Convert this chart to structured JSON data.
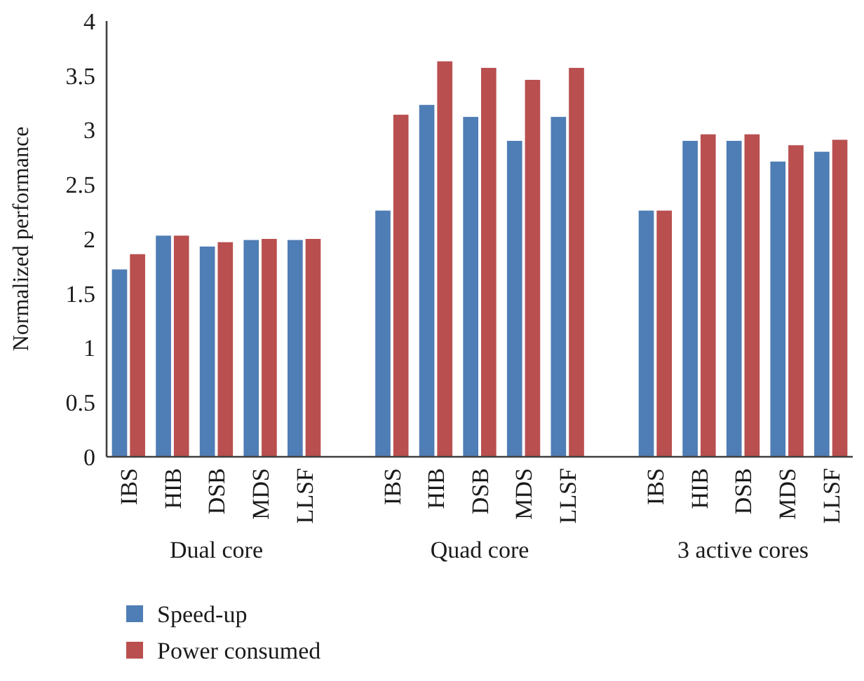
{
  "chart_data": {
    "type": "bar",
    "ylabel": "Normalized performance",
    "categories": [
      "IBS",
      "HIB",
      "DSB",
      "MDS",
      "LLSF",
      null,
      "IBS",
      "HIB",
      "DSB",
      "MDS",
      "LLSF",
      null,
      "IBS",
      "HIB",
      "DSB",
      "MDS",
      "LLSF"
    ],
    "series": [
      {
        "name": "Speed-up",
        "color": "#4f7db5",
        "values": [
          1.72,
          2.03,
          1.93,
          1.99,
          1.99,
          null,
          2.26,
          3.23,
          3.12,
          2.9,
          3.12,
          null,
          2.26,
          2.9,
          2.9,
          2.71,
          2.8
        ]
      },
      {
        "name": "Power consumed",
        "color": "#b94f4f",
        "values": [
          1.86,
          2.03,
          1.97,
          2.0,
          2.0,
          null,
          3.14,
          3.63,
          3.57,
          3.46,
          3.57,
          null,
          2.26,
          2.96,
          2.96,
          2.86,
          2.91
        ]
      }
    ],
    "ylim": [
      0,
      4
    ],
    "yticks": [
      0,
      0.5,
      1,
      1.5,
      2,
      2.5,
      3,
      3.5,
      4
    ],
    "annotations": [
      "Dual core",
      "Quad core",
      "3 active cores"
    ],
    "legend": "bottom left",
    "grid": false
  }
}
